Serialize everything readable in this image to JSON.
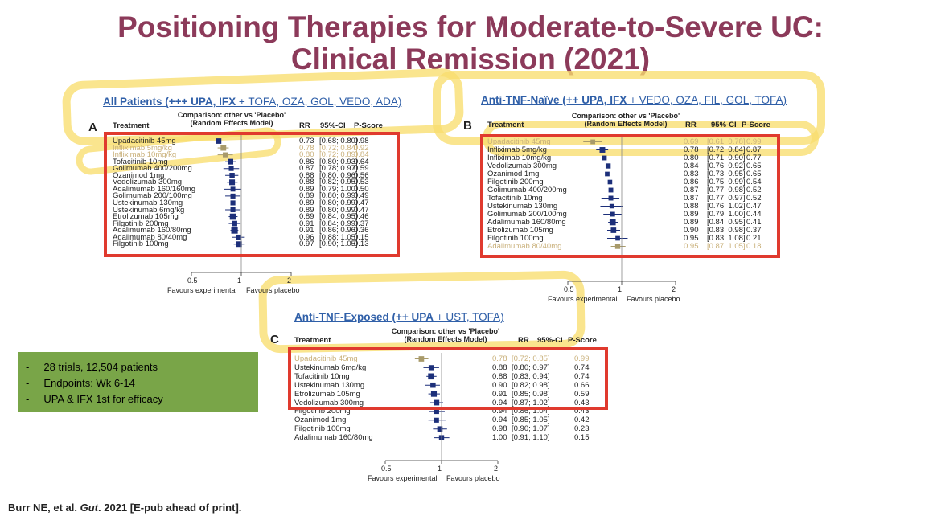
{
  "title": {
    "line1": "Positioning Therapies for Moderate-to-Severe UC:",
    "line2": "Clinical Remission (2021)"
  },
  "columns": {
    "treatment": "Treatment",
    "comparison": "Comparison: other vs 'Placebo'",
    "model": "(Random Effects Model)",
    "rr": "RR",
    "ci": "95%-CI",
    "pscore": "P-Score"
  },
  "axis": {
    "ticks": [
      "0.5",
      "1",
      "2"
    ],
    "left_label": "Favours experimental",
    "right_label": "Favours placebo"
  },
  "panels": [
    {
      "letter": "A",
      "heading_bold": "All Patients (+++ UPA, IFX",
      "heading_rest": " + TOFA, OZA, GOL, VEDO, ADA)",
      "rows": [
        {
          "t": "Upadacitinib 45mg",
          "rr": "0.73",
          "ci": "[0.68; 0.80]",
          "p": "0.98",
          "v": 0.73,
          "lo": 0.68,
          "hi": 0.8
        },
        {
          "t": "Infliximab 5mg/kg",
          "rr": "0.78",
          "ci": "[0.72; 0.84]",
          "p": "0.92",
          "v": 0.78,
          "lo": 0.72,
          "hi": 0.84
        },
        {
          "t": "Infliximab 10mg/kg",
          "rr": "0.80",
          "ci": "[0.72; 0.89]",
          "p": "0.84",
          "v": 0.8,
          "lo": 0.72,
          "hi": 0.89
        },
        {
          "t": "Tofacitinib 10mg",
          "rr": "0.86",
          "ci": "[0.80; 0.93]",
          "p": "0.64",
          "v": 0.86,
          "lo": 0.8,
          "hi": 0.93
        },
        {
          "t": "Golimumab 400/200mg",
          "rr": "0.87",
          "ci": "[0.78; 0.97]",
          "p": "0.59",
          "v": 0.87,
          "lo": 0.78,
          "hi": 0.97
        },
        {
          "t": "Ozanimod 1mg",
          "rr": "0.88",
          "ci": "[0.80; 0.96]",
          "p": "0.56",
          "v": 0.88,
          "lo": 0.8,
          "hi": 0.96
        },
        {
          "t": "Vedolizumab 300mg",
          "rr": "0.88",
          "ci": "[0.82; 0.95]",
          "p": "0.53",
          "v": 0.88,
          "lo": 0.82,
          "hi": 0.95
        },
        {
          "t": "Adalimumab 160/160mg",
          "rr": "0.89",
          "ci": "[0.79; 1.00]",
          "p": "0.50",
          "v": 0.89,
          "lo": 0.79,
          "hi": 1.0
        },
        {
          "t": "Golimumab 200/100mg",
          "rr": "0.89",
          "ci": "[0.80; 0.99]",
          "p": "0.49",
          "v": 0.89,
          "lo": 0.8,
          "hi": 0.99
        },
        {
          "t": "Ustekinumab 130mg",
          "rr": "0.89",
          "ci": "[0.80; 0.99]",
          "p": "0.47",
          "v": 0.89,
          "lo": 0.8,
          "hi": 0.99
        },
        {
          "t": "Ustekinumab 6mg/kg",
          "rr": "0.89",
          "ci": "[0.80; 0.99]",
          "p": "0.47",
          "v": 0.89,
          "lo": 0.8,
          "hi": 0.99
        },
        {
          "t": "Etrolizumab 105mg",
          "rr": "0.89",
          "ci": "[0.84; 0.95]",
          "p": "0.46",
          "v": 0.89,
          "lo": 0.84,
          "hi": 0.95
        },
        {
          "t": "Filgotinib 200mg",
          "rr": "0.91",
          "ci": "[0.84; 0.99]",
          "p": "0.37",
          "v": 0.91,
          "lo": 0.84,
          "hi": 0.99
        },
        {
          "t": "Adalimumab 160/80mg",
          "rr": "0.91",
          "ci": "[0.86; 0.96]",
          "p": "0.36",
          "v": 0.91,
          "lo": 0.86,
          "hi": 0.96
        },
        {
          "t": "Adalimumab 80/40mg",
          "rr": "0.96",
          "ci": "[0.88; 1.05]",
          "p": "0.15",
          "v": 0.96,
          "lo": 0.88,
          "hi": 1.05
        },
        {
          "t": "Filgotinib 100mg",
          "rr": "0.97",
          "ci": "[0.90; 1.05]",
          "p": "0.13",
          "v": 0.97,
          "lo": 0.9,
          "hi": 1.05
        }
      ]
    },
    {
      "letter": "B",
      "heading_bold": "Anti-TNF-Naïve (++ UPA, IFX",
      "heading_rest": " + VEDO, OZA, FIL, GOL, TOFA)",
      "rows": [
        {
          "t": "Upadacitinib 45mg",
          "rr": "0.69",
          "ci": "[0.61; 0.78]",
          "p": "0.99",
          "v": 0.69,
          "lo": 0.61,
          "hi": 0.78
        },
        {
          "t": "Infliximab 5mg/kg",
          "rr": "0.78",
          "ci": "[0.72; 0.84]",
          "p": "0.87",
          "v": 0.78,
          "lo": 0.72,
          "hi": 0.84
        },
        {
          "t": "Infliximab 10mg/kg",
          "rr": "0.80",
          "ci": "[0.71; 0.90]",
          "p": "0.77",
          "v": 0.8,
          "lo": 0.71,
          "hi": 0.9
        },
        {
          "t": "Vedolizumab 300mg",
          "rr": "0.84",
          "ci": "[0.76; 0.92]",
          "p": "0.65",
          "v": 0.84,
          "lo": 0.76,
          "hi": 0.92
        },
        {
          "t": "Ozanimod 1mg",
          "rr": "0.83",
          "ci": "[0.73; 0.95]",
          "p": "0.65",
          "v": 0.83,
          "lo": 0.73,
          "hi": 0.95
        },
        {
          "t": "Filgotinib 200mg",
          "rr": "0.86",
          "ci": "[0.75; 0.99]",
          "p": "0.54",
          "v": 0.86,
          "lo": 0.75,
          "hi": 0.99
        },
        {
          "t": "Golimumab 400/200mg",
          "rr": "0.87",
          "ci": "[0.77; 0.98]",
          "p": "0.52",
          "v": 0.87,
          "lo": 0.77,
          "hi": 0.98
        },
        {
          "t": "Tofacitinib 10mg",
          "rr": "0.87",
          "ci": "[0.77; 0.97]",
          "p": "0.52",
          "v": 0.87,
          "lo": 0.77,
          "hi": 0.97
        },
        {
          "t": "Ustekinumab 130mg",
          "rr": "0.88",
          "ci": "[0.76; 1.02]",
          "p": "0.47",
          "v": 0.88,
          "lo": 0.76,
          "hi": 1.02
        },
        {
          "t": "Golimumab 200/100mg",
          "rr": "0.89",
          "ci": "[0.79; 1.00]",
          "p": "0.44",
          "v": 0.89,
          "lo": 0.79,
          "hi": 1.0
        },
        {
          "t": "Adalimumab 160/80mg",
          "rr": "0.89",
          "ci": "[0.84; 0.95]",
          "p": "0.41",
          "v": 0.89,
          "lo": 0.84,
          "hi": 0.95
        },
        {
          "t": "Etrolizumab 105mg",
          "rr": "0.90",
          "ci": "[0.83; 0.98]",
          "p": "0.37",
          "v": 0.9,
          "lo": 0.83,
          "hi": 0.98
        },
        {
          "t": "Filgotinib 100mg",
          "rr": "0.95",
          "ci": "[0.83; 1.08]",
          "p": "0.21",
          "v": 0.95,
          "lo": 0.83,
          "hi": 1.08
        },
        {
          "t": "Adalimumab 80/40mg",
          "rr": "0.95",
          "ci": "[0.87; 1.05]",
          "p": "0.18",
          "v": 0.95,
          "lo": 0.87,
          "hi": 1.05
        }
      ]
    },
    {
      "letter": "C",
      "heading_bold": "Anti-TNF-Exposed (++ UPA",
      "heading_rest": " + UST, TOFA)",
      "rows": [
        {
          "t": "Upadacitinib 45mg",
          "rr": "0.78",
          "ci": "[0.72; 0.85]",
          "p": "0.99",
          "v": 0.78,
          "lo": 0.72,
          "hi": 0.85
        },
        {
          "t": "Ustekinumab 6mg/kg",
          "rr": "0.88",
          "ci": "[0.80; 0.97]",
          "p": "0.74",
          "v": 0.88,
          "lo": 0.8,
          "hi": 0.97
        },
        {
          "t": "Tofacitinib 10mg",
          "rr": "0.88",
          "ci": "[0.83; 0.94]",
          "p": "0.74",
          "v": 0.88,
          "lo": 0.83,
          "hi": 0.94
        },
        {
          "t": "Ustekinumab 130mg",
          "rr": "0.90",
          "ci": "[0.82; 0.98]",
          "p": "0.66",
          "v": 0.9,
          "lo": 0.82,
          "hi": 0.98
        },
        {
          "t": "Etrolizumab 105mg",
          "rr": "0.91",
          "ci": "[0.85; 0.98]",
          "p": "0.59",
          "v": 0.91,
          "lo": 0.85,
          "hi": 0.98
        },
        {
          "t": "Vedolizumab 300mg",
          "rr": "0.94",
          "ci": "[0.87; 1.02]",
          "p": "0.43",
          "v": 0.94,
          "lo": 0.87,
          "hi": 1.02
        },
        {
          "t": "Filgotinib 200mg",
          "rr": "0.94",
          "ci": "[0.86; 1.04]",
          "p": "0.43",
          "v": 0.94,
          "lo": 0.86,
          "hi": 1.04
        },
        {
          "t": "Ozanimod 1mg",
          "rr": "0.94",
          "ci": "[0.85; 1.05]",
          "p": "0.42",
          "v": 0.94,
          "lo": 0.85,
          "hi": 1.05
        },
        {
          "t": "Filgotinib 100mg",
          "rr": "0.98",
          "ci": "[0.90; 1.07]",
          "p": "0.23",
          "v": 0.98,
          "lo": 0.9,
          "hi": 1.07
        },
        {
          "t": "Adalimumab 160/80mg",
          "rr": "1.00",
          "ci": "[0.91; 1.10]",
          "p": "0.15",
          "v": 1.0,
          "lo": 0.91,
          "hi": 1.1
        }
      ]
    }
  ],
  "summary_box": {
    "color": "#79a548",
    "items": [
      "28 trials, 12,504 patients",
      "Endpoints: Wk 6-14",
      "UPA & IFX 1st for efficacy"
    ]
  },
  "citation": {
    "authors": "Burr NE, et al.",
    "journal": "Gut",
    "rest": ". 2021 [E-pub ahead of print]."
  },
  "colors": {
    "title": "#8c3a5a",
    "heading": "#2f5fa8",
    "highlight": "#f8de6e",
    "redbox": "#e03a2e",
    "marker": "#1c2f7a"
  }
}
